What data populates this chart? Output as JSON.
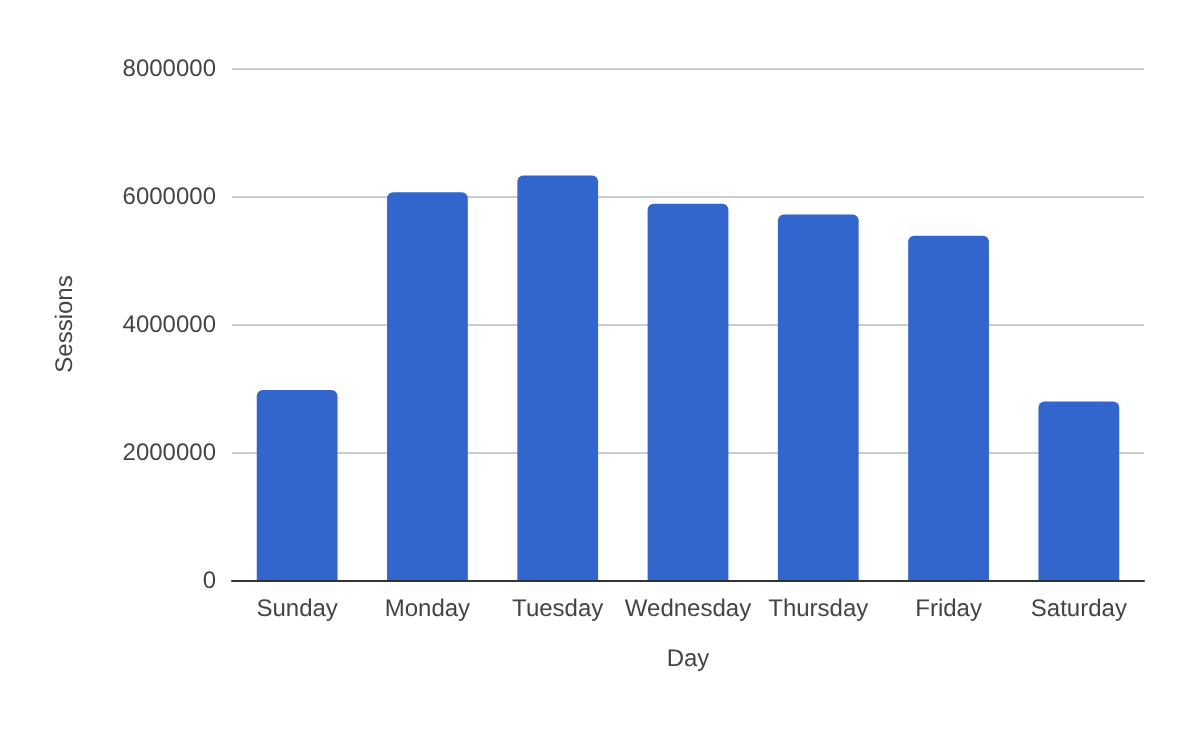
{
  "chart_data": {
    "type": "bar",
    "xlabel": "Day",
    "ylabel": "Sessions",
    "categories": [
      "Sunday",
      "Monday",
      "Tuesday",
      "Wednesday",
      "Thursday",
      "Friday",
      "Saturday"
    ],
    "values": [
      2970000,
      6060000,
      6320000,
      5880000,
      5710000,
      5380000,
      2790000
    ],
    "color": "#3366cc",
    "ylim": [
      0,
      8000000
    ],
    "yticks": [
      0,
      2000000,
      4000000,
      6000000,
      8000000
    ],
    "grid": "y"
  }
}
